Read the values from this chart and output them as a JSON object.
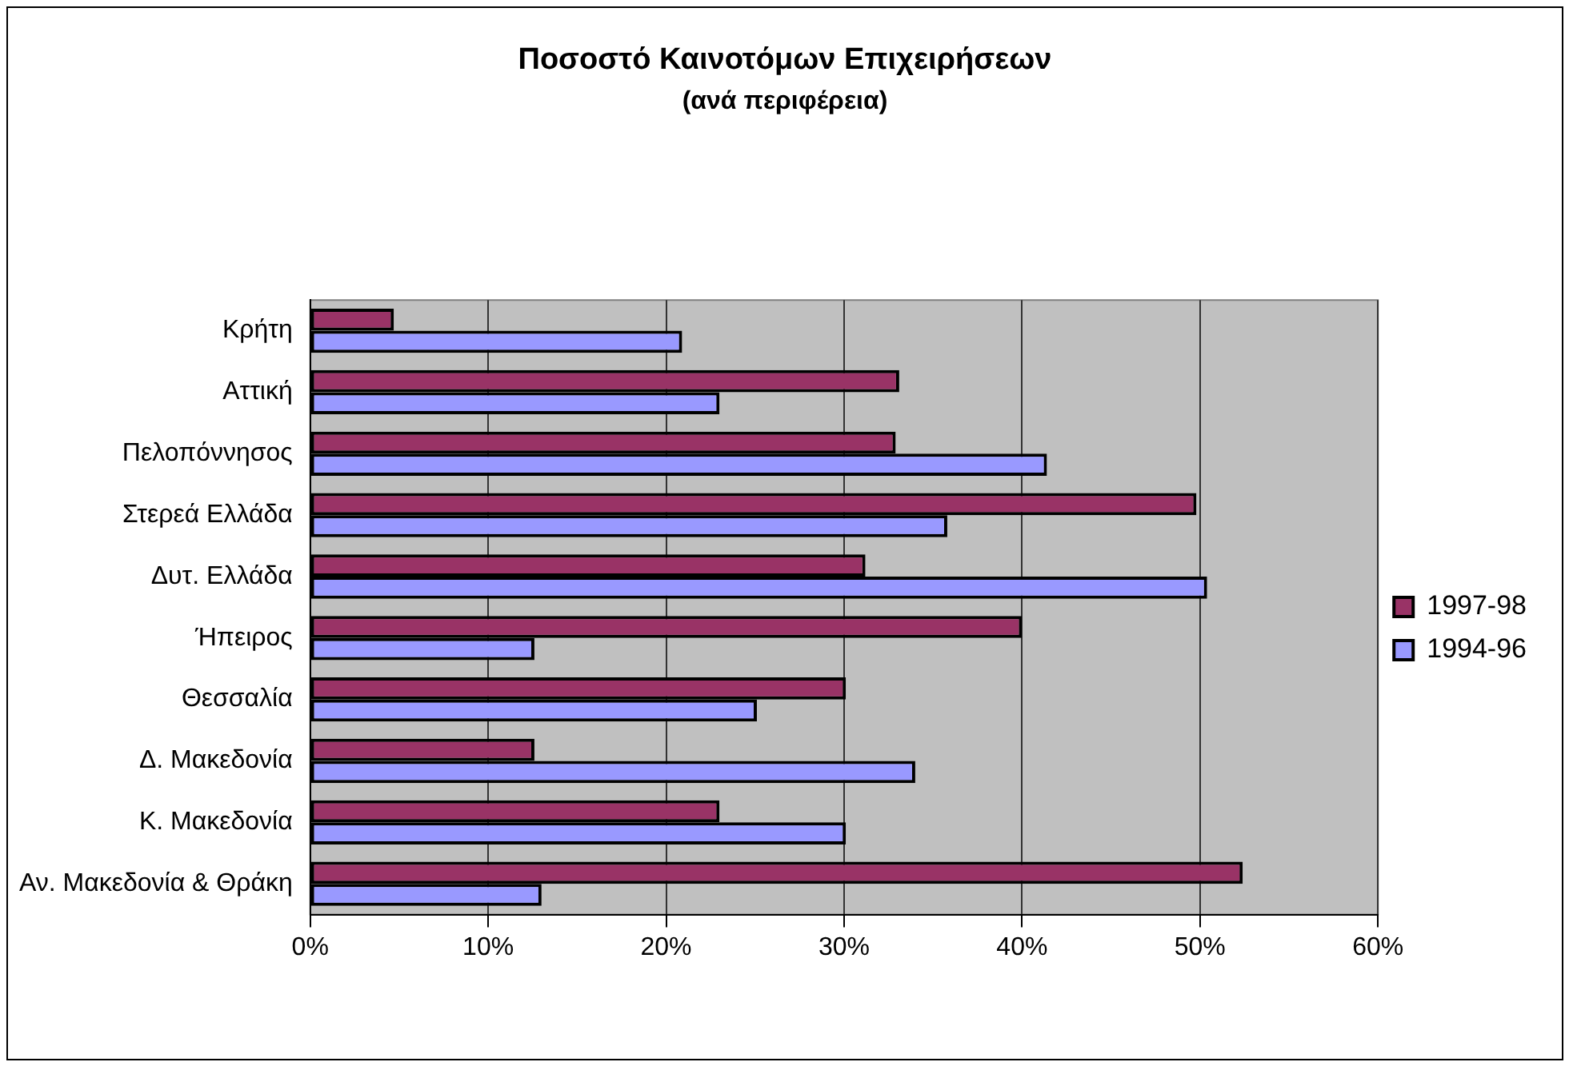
{
  "chart_data": {
    "type": "bar",
    "orientation": "horizontal",
    "title": "Ποσοστό Καινοτόμων Επιχειρήσεων",
    "subtitle": "(ανά περιφέρεια)",
    "categories": [
      "Κρήτη",
      "Αττική",
      "Πελοπόννησος",
      "Στερεά Ελλάδα",
      "Δυτ. Ελλάδα",
      "Ήπειρος",
      "Θεσσαλία",
      "Δ. Μακεδονία",
      "Κ. Μακεδονία",
      "Αν. Μακεδονία & Θράκη"
    ],
    "series": [
      {
        "name": "1997-98",
        "color": "#993366",
        "values": [
          4.7,
          33.1,
          32.9,
          49.8,
          31.2,
          40.0,
          30.1,
          12.6,
          23.0,
          52.4
        ]
      },
      {
        "name": "1994-96",
        "color": "#9999ff",
        "values": [
          20.9,
          23.0,
          41.4,
          35.8,
          50.4,
          12.6,
          25.1,
          34.0,
          30.1,
          13.0
        ]
      }
    ],
    "xlim": [
      0,
      60
    ],
    "xticks": [
      {
        "value": 0,
        "label": "0%"
      },
      {
        "value": 10,
        "label": "10%"
      },
      {
        "value": 20,
        "label": "20%"
      },
      {
        "value": 30,
        "label": "30%"
      },
      {
        "value": 40,
        "label": "40%"
      },
      {
        "value": 50,
        "label": "50%"
      },
      {
        "value": 60,
        "label": "60%"
      }
    ],
    "grid": "x",
    "legend": "right"
  }
}
